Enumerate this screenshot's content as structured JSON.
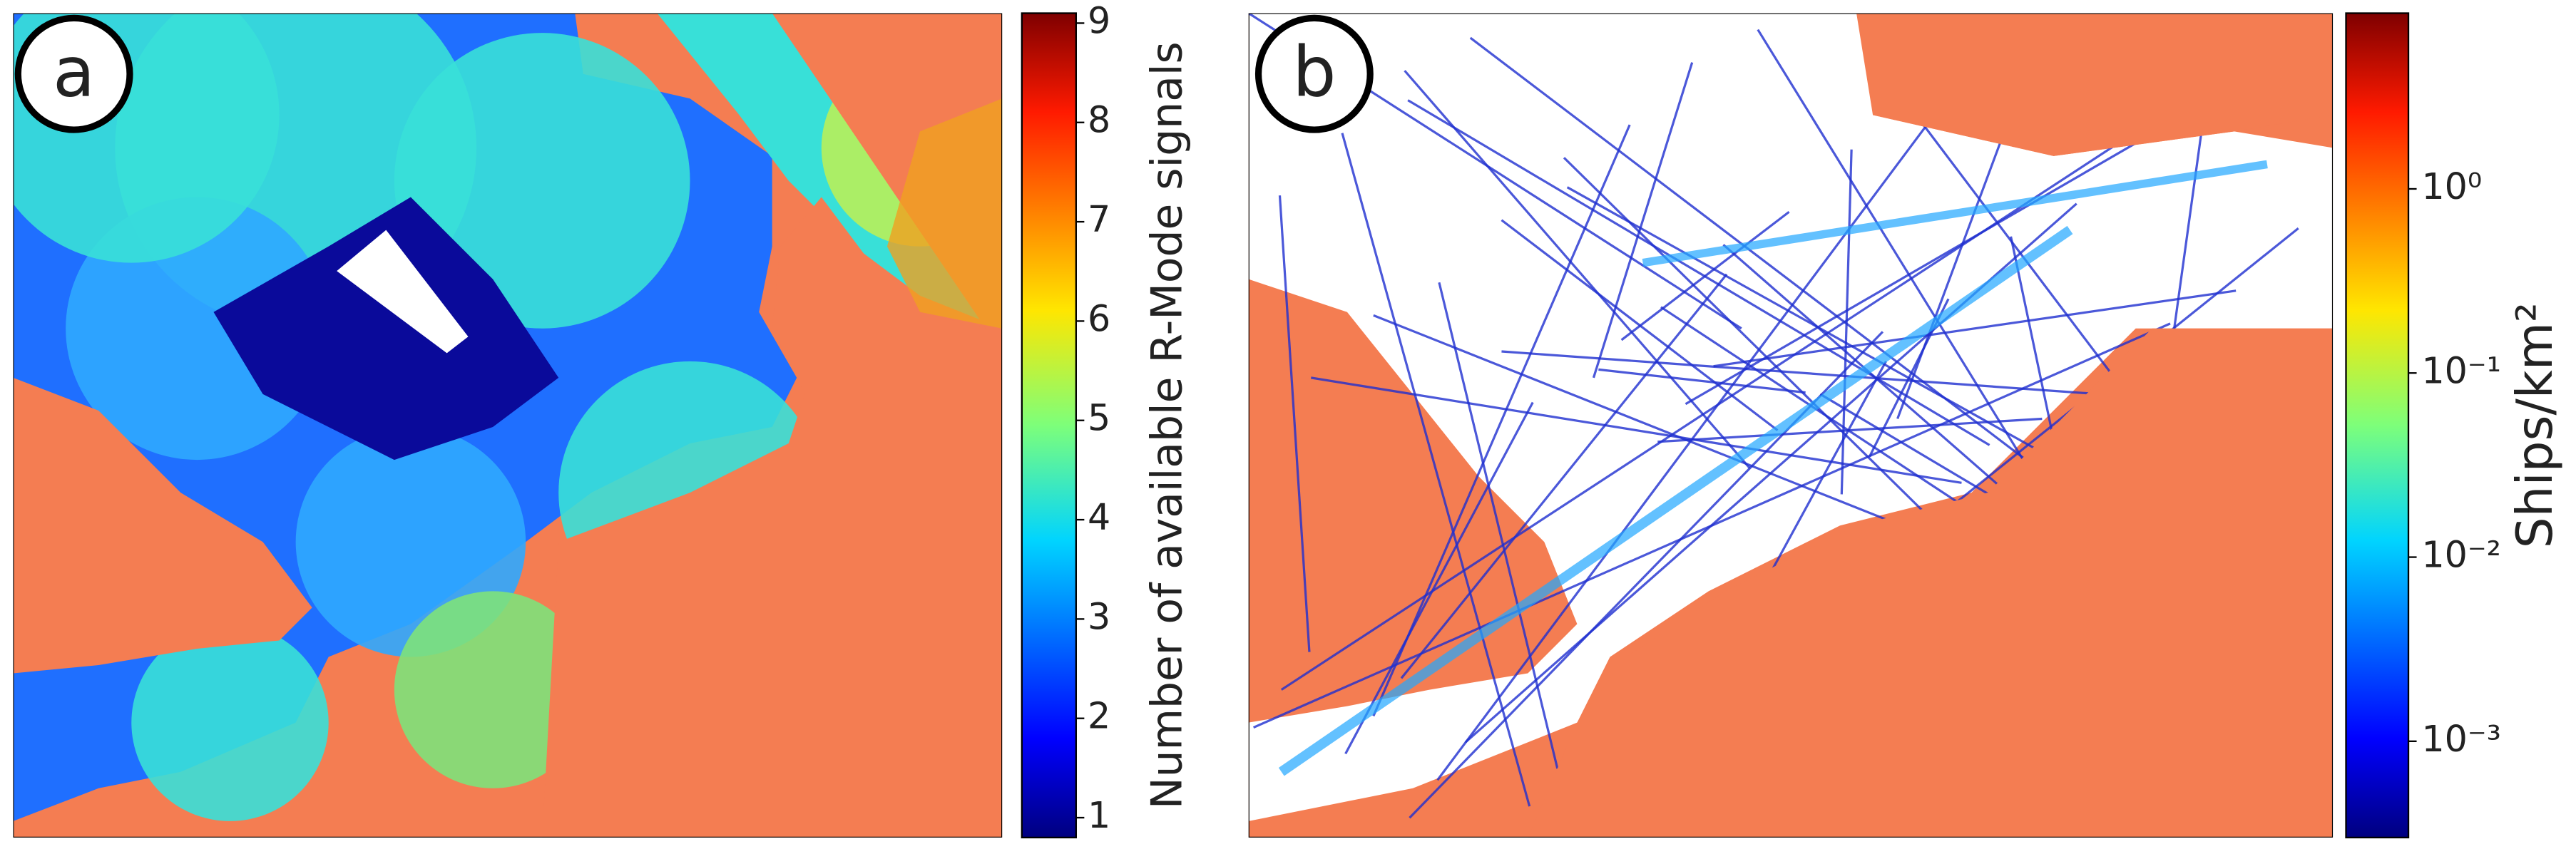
{
  "panels": [
    {
      "label": "a",
      "colorbar": {
        "label": "Number of available R-Mode signals",
        "lim": [
          0.8,
          9.1
        ],
        "log": false,
        "ticks": [
          1,
          2,
          3,
          4,
          5,
          6,
          7,
          8,
          9
        ]
      }
    },
    {
      "label": "b",
      "colorbar": {
        "label": "Ships/km²",
        "lim": [
          0.0003,
          9
        ],
        "log": true,
        "ticks": [
          {
            "value": 0.001,
            "label": "10⁻³"
          },
          {
            "value": 0.01,
            "label": "10⁻²"
          },
          {
            "value": 0.1,
            "label": "10⁻¹"
          },
          {
            "value": 1,
            "label": "10⁰"
          }
        ]
      }
    }
  ]
}
